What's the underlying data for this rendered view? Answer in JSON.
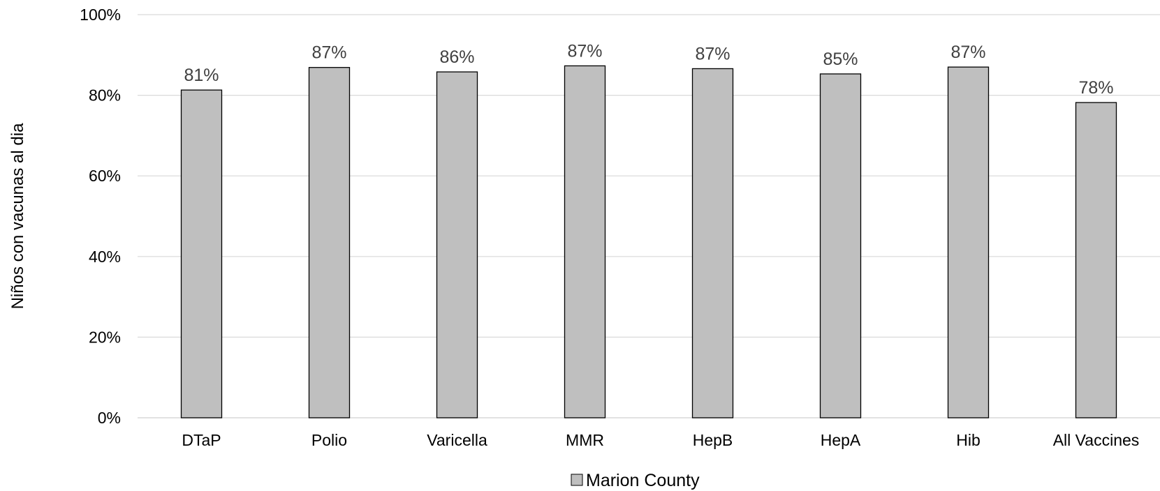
{
  "chart_data": {
    "type": "bar",
    "title": "",
    "xlabel": "",
    "ylabel": "Niños con vacunas al dia",
    "categories": [
      "DTaP",
      "Polio",
      "Varicella",
      "MMR",
      "HepB",
      "HepA",
      "Hib",
      "All Vaccines"
    ],
    "series": [
      {
        "name": "Marion County",
        "values": [
          81.3,
          86.9,
          85.8,
          87.3,
          86.6,
          85.3,
          87.0,
          78.2
        ],
        "data_labels": [
          "81%",
          "87%",
          "86%",
          "87%",
          "87%",
          "85%",
          "87%",
          "78%"
        ],
        "color": "#bfbfbf",
        "edge_color": "#000000"
      }
    ],
    "ylim": [
      0,
      100
    ],
    "y_ticks": [
      0,
      20,
      40,
      60,
      80,
      100
    ],
    "y_tick_labels": [
      "0%",
      "20%",
      "40%",
      "60%",
      "80%",
      "100%"
    ],
    "grid": true,
    "grid_color": "#d9d9d9",
    "legend_position": "bottom"
  }
}
